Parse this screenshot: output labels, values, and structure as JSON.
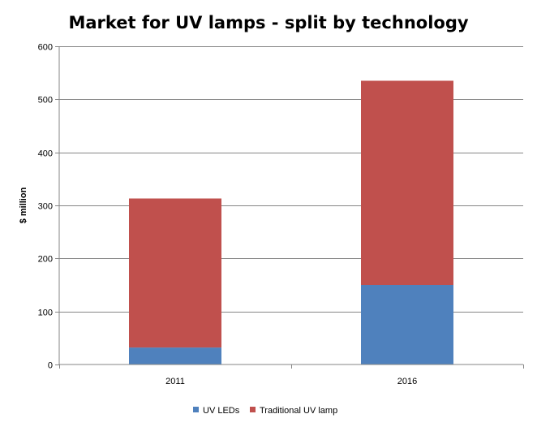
{
  "chart_data": {
    "type": "bar",
    "stacked": true,
    "title": "Market for UV lamps - split by technology",
    "xlabel": "",
    "ylabel": "$ million",
    "categories": [
      "2011",
      "2016"
    ],
    "ylim": [
      0,
      600
    ],
    "yticks": [
      0,
      100,
      200,
      300,
      400,
      500,
      600
    ],
    "grid": true,
    "legend_position": "bottom",
    "series": [
      {
        "name": "UV LEDs",
        "values": [
          32,
          150
        ],
        "color": "#4f81bd"
      },
      {
        "name": "Traditional UV lamp",
        "values": [
          281,
          385
        ],
        "color": "#c0504d"
      }
    ]
  }
}
